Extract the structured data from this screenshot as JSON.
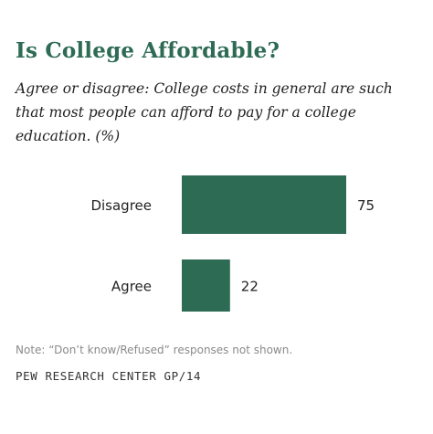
{
  "title": "Is College Affordable?",
  "subtitle": "Agree or disagree: College costs in general are such that most people can afford to pay for a college education. (%)",
  "note": "Note: “Don’t know/Refused” responses not shown.",
  "source": "PEW RESEARCH CENTER GP/14",
  "colors": {
    "bar": "#2e6b55",
    "title": "#2e6b55"
  },
  "chart_data": {
    "type": "bar",
    "orientation": "horizontal",
    "categories": [
      "Disagree",
      "Agree"
    ],
    "values": [
      75,
      22
    ],
    "xlim": [
      0,
      100
    ],
    "grid": false
  }
}
